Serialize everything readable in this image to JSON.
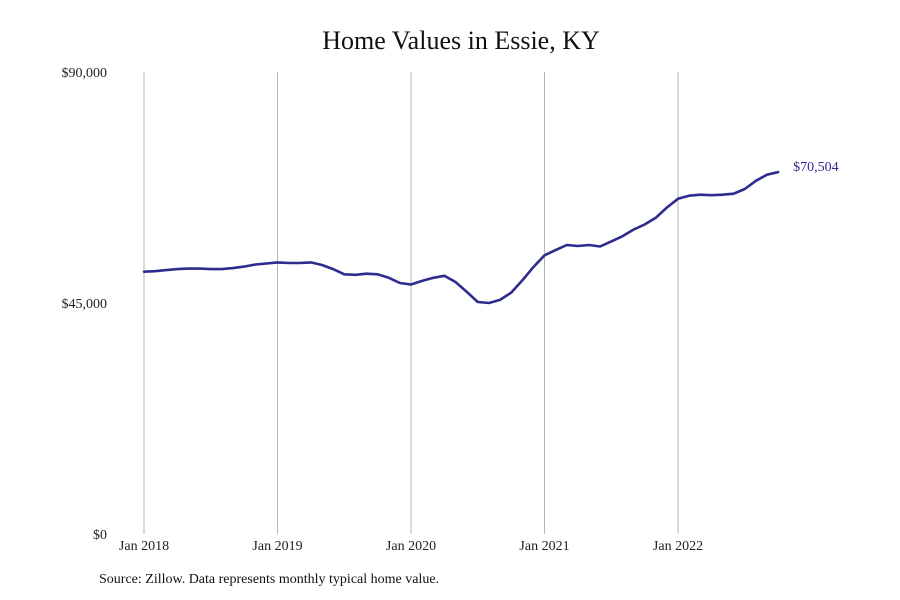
{
  "chart_data": {
    "type": "line",
    "title": "Home Values in Essie, KY",
    "xlabel": "",
    "ylabel": "",
    "ylim": [
      0,
      90000
    ],
    "y_ticks": [
      {
        "value": 0,
        "label": "$0"
      },
      {
        "value": 45000,
        "label": "$45,000"
      },
      {
        "value": 90000,
        "label": "$90,000"
      }
    ],
    "x_ticks": [
      {
        "value": "2018-01",
        "label": "Jan 2018"
      },
      {
        "value": "2019-01",
        "label": "Jan 2019"
      },
      {
        "value": "2020-01",
        "label": "Jan 2020"
      },
      {
        "value": "2021-01",
        "label": "Jan 2021"
      },
      {
        "value": "2022-01",
        "label": "Jan 2022"
      }
    ],
    "xlim": [
      "2018-01",
      "2022-10"
    ],
    "grid": "vertical",
    "legend": "none",
    "series": [
      {
        "color": "#2e2b8f",
        "x": [
          "2018-01",
          "2018-02",
          "2018-03",
          "2018-04",
          "2018-05",
          "2018-06",
          "2018-07",
          "2018-08",
          "2018-09",
          "2018-10",
          "2018-11",
          "2018-12",
          "2019-01",
          "2019-02",
          "2019-03",
          "2019-04",
          "2019-05",
          "2019-06",
          "2019-07",
          "2019-08",
          "2019-09",
          "2019-10",
          "2019-11",
          "2019-12",
          "2020-01",
          "2020-02",
          "2020-03",
          "2020-04",
          "2020-05",
          "2020-06",
          "2020-07",
          "2020-08",
          "2020-09",
          "2020-10",
          "2020-11",
          "2020-12",
          "2021-01",
          "2021-02",
          "2021-03",
          "2021-04",
          "2021-05",
          "2021-06",
          "2021-07",
          "2021-08",
          "2021-09",
          "2021-10",
          "2021-11",
          "2021-12",
          "2022-01",
          "2022-02",
          "2022-03",
          "2022-04",
          "2022-05",
          "2022-06",
          "2022-07",
          "2022-08",
          "2022-09",
          "2022-10"
        ],
        "values": [
          51100,
          51200,
          51400,
          51600,
          51700,
          51700,
          51600,
          51600,
          51800,
          52100,
          52500,
          52700,
          52900,
          52800,
          52800,
          52900,
          52400,
          51600,
          50600,
          50500,
          50700,
          50600,
          49900,
          48900,
          48600,
          49300,
          49900,
          50300,
          49100,
          47200,
          45200,
          45000,
          45600,
          47000,
          49400,
          52000,
          54300,
          55300,
          56300,
          56100,
          56300,
          56000,
          57000,
          58000,
          59300,
          60300,
          61600,
          63600,
          65300,
          65900,
          66100,
          66000,
          66100,
          66300,
          67200,
          68800,
          70000,
          70504
        ],
        "end_label": "$70,504"
      }
    ],
    "source": "Source: Zillow. Data represents monthly typical home value."
  }
}
